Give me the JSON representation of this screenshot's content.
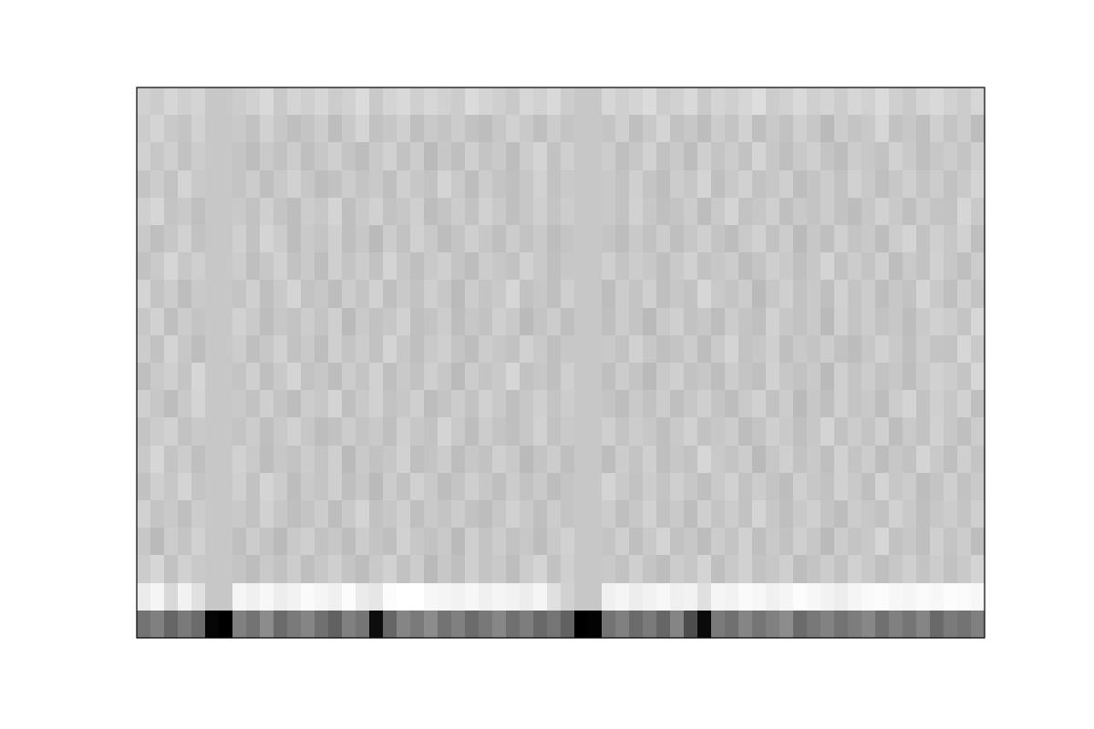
{
  "chart_data": {
    "type": "heatmap",
    "color": "gray",
    "tick_labels": false,
    "z": [
      [
        45,
        50,
        40,
        48,
        42,
        2,
        0,
        50,
        45,
        55,
        42,
        48,
        52,
        44,
        38,
        50,
        46,
        5,
        40,
        52,
        48,
        55,
        45,
        50,
        42,
        47,
        53,
        44,
        49,
        41,
        46,
        38,
        0,
        1,
        45,
        50,
        42,
        48,
        40,
        52,
        30,
        4,
        48,
        44,
        52,
        46,
        50,
        55,
        42,
        47,
        51,
        45,
        49,
        53,
        44,
        50,
        46,
        52,
        41,
        48,
        45,
        50
      ],
      [
        92,
        96,
        85,
        95,
        88,
        78,
        78,
        96,
        94,
        97,
        93,
        95,
        98,
        96,
        94,
        99,
        92,
        90,
        99,
        100,
        100,
        97,
        96,
        95,
        97,
        94,
        96,
        95,
        93,
        96,
        88,
        82,
        78,
        78,
        94,
        96,
        93,
        95,
        97,
        94,
        95,
        88,
        96,
        95,
        98,
        97,
        94,
        96,
        99,
        97,
        95,
        93,
        96,
        98,
        99,
        97,
        96,
        98,
        97,
        99,
        98,
        97
      ],
      [
        80,
        84,
        76,
        82,
        79,
        78,
        78,
        77,
        74,
        79,
        76,
        80,
        75,
        78,
        81,
        77,
        74,
        79,
        82,
        76,
        80,
        73,
        78,
        75,
        81,
        77,
        79,
        74,
        80,
        83,
        76,
        81,
        78,
        78,
        79,
        76,
        81,
        77,
        74,
        80,
        78,
        83,
        75,
        79,
        82,
        76,
        78,
        81,
        74,
        77,
        80,
        76,
        82,
        79,
        75,
        78,
        81,
        77,
        80,
        76,
        79,
        83
      ],
      [
        78,
        73,
        80,
        77,
        82,
        78,
        78,
        75,
        80,
        77,
        73,
        79,
        81,
        76,
        78,
        74,
        80,
        77,
        75,
        82,
        78,
        76,
        79,
        73,
        81,
        77,
        80,
        76,
        78,
        74,
        79,
        82,
        78,
        78,
        77,
        81,
        75,
        79,
        83,
        76,
        78,
        74,
        80,
        77,
        82,
        75,
        79,
        76,
        81,
        78,
        73,
        80,
        77,
        79,
        84,
        76,
        78,
        75,
        81,
        77,
        80,
        74
      ],
      [
        82,
        77,
        79,
        75,
        80,
        78,
        78,
        79,
        76,
        82,
        78,
        75,
        77,
        80,
        74,
        79,
        83,
        76,
        78,
        81,
        75,
        79,
        77,
        80,
        76,
        74,
        78,
        82,
        79,
        75,
        80,
        77,
        78,
        78,
        80,
        75,
        78,
        82,
        76,
        79,
        74,
        81,
        77,
        80,
        76,
        83,
        78,
        75,
        79,
        81,
        77,
        74,
        80,
        78,
        76,
        82,
        79,
        75,
        78,
        80,
        77,
        81
      ],
      [
        76,
        81,
        78,
        83,
        77,
        78,
        78,
        81,
        76,
        83,
        80,
        74,
        79,
        77,
        81,
        75,
        78,
        73,
        80,
        76,
        82,
        79,
        74,
        77,
        81,
        78,
        75,
        80,
        76,
        79,
        74,
        77,
        78,
        78,
        83,
        79,
        76,
        80,
        77,
        81,
        78,
        75,
        79,
        82,
        76,
        80,
        77,
        74,
        81,
        78,
        76,
        82,
        79,
        75,
        83,
        78,
        80,
        74,
        77,
        81,
        76,
        79
      ],
      [
        79,
        84,
        77,
        80,
        75,
        78,
        78,
        82,
        79,
        74,
        78,
        76,
        80,
        77,
        81,
        73,
        79,
        76,
        78,
        82,
        75,
        77,
        80,
        74,
        78,
        76,
        81,
        79,
        73,
        77,
        80,
        75,
        78,
        78,
        74,
        80,
        77,
        81,
        75,
        78,
        76,
        84,
        79,
        77,
        80,
        73,
        78,
        81,
        76,
        79,
        75,
        82,
        77,
        80,
        74,
        78,
        76,
        83,
        79,
        75,
        81,
        77
      ],
      [
        77,
        80,
        82,
        76,
        79,
        78,
        78,
        77,
        80,
        75,
        79,
        82,
        78,
        74,
        76,
        80,
        77,
        79,
        75,
        81,
        78,
        76,
        83,
        79,
        74,
        80,
        77,
        75,
        78,
        82,
        76,
        79,
        78,
        78,
        81,
        77,
        80,
        78,
        75,
        79,
        82,
        76,
        78,
        80,
        74,
        77,
        81,
        79,
        75,
        78,
        83,
        76,
        80,
        77,
        81,
        74,
        79,
        76,
        82,
        78,
        75,
        80
      ],
      [
        81,
        78,
        74,
        79,
        83,
        78,
        78,
        79,
        76,
        81,
        77,
        74,
        80,
        78,
        83,
        75,
        79,
        82,
        76,
        78,
        81,
        74,
        77,
        80,
        76,
        82,
        79,
        75,
        78,
        81,
        77,
        80,
        78,
        78,
        77,
        74,
        79,
        76,
        80,
        75,
        78,
        81,
        77,
        74,
        79,
        82,
        76,
        80,
        73,
        78,
        75,
        81,
        77,
        79,
        74,
        80,
        83,
        76,
        81,
        78,
        82,
        75
      ],
      [
        75,
        79,
        81,
        77,
        84,
        78,
        78,
        77,
        81,
        75,
        79,
        83,
        76,
        78,
        74,
        80,
        77,
        82,
        75,
        79,
        76,
        81,
        78,
        73,
        80,
        77,
        79,
        84,
        76,
        78,
        75,
        81,
        78,
        78,
        75,
        80,
        77,
        73,
        79,
        81,
        76,
        78,
        74,
        80,
        77,
        75,
        82,
        78,
        76,
        79,
        73,
        81,
        77,
        80,
        76,
        78,
        74,
        79,
        82,
        80,
        77,
        84
      ],
      [
        80,
        76,
        83,
        78,
        74,
        78,
        78,
        80,
        75,
        78,
        82,
        76,
        79,
        74,
        81,
        77,
        80,
        76,
        83,
        78,
        75,
        79,
        81,
        77,
        74,
        80,
        78,
        76,
        82,
        79,
        75,
        78,
        78,
        78,
        79,
        76,
        82,
        78,
        75,
        77,
        80,
        74,
        79,
        83,
        76,
        78,
        81,
        75,
        79,
        77,
        80,
        76,
        74,
        78,
        82,
        79,
        75,
        80,
        77,
        76,
        84,
        79
      ],
      [
        78,
        82,
        75,
        80,
        77,
        78,
        78,
        82,
        79,
        74,
        78,
        76,
        80,
        77,
        81,
        73,
        79,
        76,
        78,
        82,
        75,
        77,
        80,
        74,
        78,
        76,
        81,
        79,
        73,
        77,
        80,
        75,
        78,
        78,
        75,
        80,
        77,
        73,
        79,
        81,
        76,
        78,
        74,
        80,
        77,
        75,
        82,
        78,
        76,
        79,
        73,
        81,
        77,
        80,
        76,
        78,
        74,
        79,
        82,
        80,
        77,
        84
      ],
      [
        83,
        77,
        80,
        74,
        79,
        78,
        78,
        77,
        81,
        75,
        79,
        83,
        76,
        78,
        74,
        80,
        77,
        82,
        75,
        79,
        76,
        81,
        78,
        73,
        80,
        77,
        79,
        84,
        76,
        78,
        75,
        81,
        78,
        78,
        74,
        80,
        77,
        81,
        75,
        78,
        76,
        84,
        79,
        77,
        80,
        73,
        78,
        81,
        76,
        79,
        75,
        82,
        77,
        80,
        74,
        78,
        76,
        83,
        79,
        75,
        81,
        77
      ],
      [
        76,
        79,
        84,
        78,
        81,
        78,
        78,
        80,
        75,
        78,
        82,
        76,
        79,
        74,
        81,
        77,
        80,
        76,
        83,
        78,
        75,
        79,
        81,
        77,
        74,
        80,
        78,
        76,
        82,
        79,
        75,
        78,
        78,
        78,
        81,
        77,
        80,
        78,
        75,
        79,
        82,
        76,
        78,
        80,
        74,
        77,
        81,
        79,
        75,
        78,
        83,
        76,
        80,
        77,
        81,
        74,
        79,
        76,
        82,
        78,
        75,
        80
      ],
      [
        79,
        75,
        78,
        82,
        76,
        78,
        78,
        81,
        76,
        83,
        80,
        74,
        79,
        77,
        81,
        75,
        78,
        73,
        80,
        76,
        82,
        79,
        74,
        77,
        81,
        78,
        75,
        80,
        76,
        79,
        74,
        77,
        78,
        78,
        77,
        74,
        79,
        76,
        80,
        75,
        78,
        81,
        77,
        74,
        79,
        82,
        76,
        80,
        73,
        78,
        75,
        81,
        77,
        79,
        74,
        80,
        83,
        76,
        81,
        78,
        82,
        75
      ],
      [
        81,
        84,
        77,
        79,
        75,
        78,
        78,
        79,
        76,
        81,
        77,
        74,
        80,
        78,
        83,
        75,
        79,
        82,
        76,
        78,
        81,
        74,
        77,
        80,
        76,
        82,
        79,
        75,
        78,
        81,
        77,
        80,
        78,
        78,
        79,
        76,
        82,
        78,
        75,
        77,
        80,
        74,
        79,
        83,
        76,
        78,
        81,
        75,
        79,
        77,
        80,
        76,
        74,
        78,
        82,
        79,
        75,
        80,
        77,
        76,
        84,
        79
      ],
      [
        77,
        80,
        76,
        83,
        79,
        78,
        78,
        77,
        80,
        75,
        79,
        82,
        78,
        74,
        76,
        80,
        77,
        79,
        75,
        81,
        78,
        76,
        83,
        79,
        74,
        80,
        77,
        75,
        78,
        82,
        76,
        79,
        78,
        78,
        79,
        76,
        81,
        77,
        74,
        80,
        78,
        83,
        75,
        79,
        82,
        76,
        78,
        81,
        74,
        77,
        80,
        76,
        82,
        79,
        75,
        78,
        81,
        77,
        80,
        76,
        79,
        83
      ],
      [
        82,
        78,
        81,
        76,
        80,
        78,
        78,
        77,
        74,
        79,
        76,
        80,
        75,
        78,
        81,
        77,
        74,
        79,
        82,
        76,
        80,
        73,
        78,
        75,
        81,
        77,
        79,
        74,
        80,
        83,
        76,
        81,
        78,
        78,
        80,
        75,
        78,
        82,
        76,
        79,
        74,
        81,
        77,
        80,
        76,
        83,
        78,
        75,
        79,
        81,
        77,
        74,
        80,
        78,
        76,
        82,
        79,
        75,
        78,
        80,
        77,
        81
      ],
      [
        80,
        83,
        79,
        77,
        82,
        78,
        78,
        79,
        76,
        82,
        78,
        75,
        77,
        80,
        74,
        79,
        83,
        76,
        78,
        81,
        75,
        79,
        77,
        80,
        76,
        74,
        78,
        82,
        79,
        75,
        80,
        77,
        78,
        78,
        77,
        81,
        75,
        79,
        83,
        76,
        78,
        74,
        80,
        77,
        82,
        75,
        79,
        76,
        81,
        78,
        73,
        80,
        77,
        79,
        84,
        76,
        78,
        75,
        81,
        77,
        80,
        74
      ],
      [
        82,
        80,
        84,
        81,
        83,
        78,
        78,
        80,
        82,
        85,
        79,
        83,
        81,
        84,
        80,
        82,
        86,
        79,
        83,
        85,
        81,
        84,
        82,
        80,
        86,
        83,
        81,
        79,
        84,
        82,
        85,
        80,
        78,
        78,
        84,
        81,
        83,
        86,
        80,
        82,
        85,
        79,
        83,
        81,
        84,
        87,
        80,
        82,
        85,
        81,
        83,
        80,
        84,
        82,
        86,
        81,
        79,
        83,
        85,
        82,
        80,
        84
      ]
    ]
  }
}
